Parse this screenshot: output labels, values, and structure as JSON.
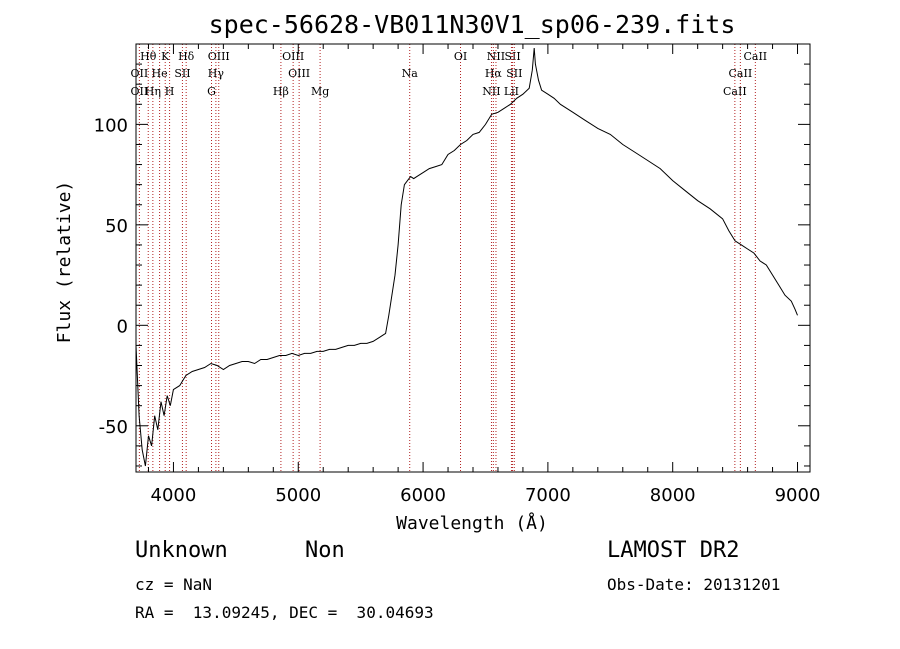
{
  "chart_data": {
    "type": "line",
    "title": "spec-56628-VB011N30V1_sp06-239.fits",
    "xlabel": "Wavelength (Å)",
    "ylabel": "Flux (relative)",
    "xlim": [
      3700,
      9100
    ],
    "ylim": [
      -73,
      140
    ],
    "xticks": [
      4000,
      5000,
      6000,
      7000,
      8000,
      9000
    ],
    "yticks": [
      -50,
      0,
      50,
      100
    ],
    "grid": false,
    "line_color": "#000000",
    "marker_color": "#b22222",
    "series": [
      {
        "x": [
          3700,
          3725,
          3750,
          3775,
          3800,
          3825,
          3850,
          3875,
          3900,
          3925,
          3950,
          3975,
          4000,
          4050,
          4100,
          4150,
          4200,
          4250,
          4300,
          4350,
          4400,
          4450,
          4500,
          4550,
          4600,
          4650,
          4700,
          4750,
          4800,
          4850,
          4900,
          4950,
          5000,
          5050,
          5100,
          5150,
          5200,
          5250,
          5300,
          5350,
          5400,
          5450,
          5500,
          5550,
          5600,
          5650,
          5700,
          5725,
          5750,
          5775,
          5800,
          5825,
          5850,
          5875,
          5900,
          5925,
          5950,
          6000,
          6050,
          6100,
          6150,
          6200,
          6250,
          6300,
          6350,
          6400,
          6450,
          6500,
          6550,
          6600,
          6650,
          6700,
          6750,
          6800,
          6850,
          6875,
          6890,
          6900,
          6925,
          6950,
          7000,
          7050,
          7100,
          7200,
          7300,
          7400,
          7500,
          7600,
          7700,
          7800,
          7900,
          8000,
          8100,
          8200,
          8300,
          8400,
          8450,
          8500,
          8550,
          8600,
          8650,
          8700,
          8750,
          8800,
          8850,
          8900,
          8950,
          8980,
          9000
        ],
        "y": [
          -10,
          -45,
          -62,
          -70,
          -55,
          -60,
          -45,
          -52,
          -38,
          -45,
          -35,
          -40,
          -32,
          -30,
          -25,
          -23,
          -22,
          -21,
          -19,
          -20,
          -22,
          -20,
          -19,
          -18,
          -18,
          -19,
          -17,
          -17,
          -16,
          -15,
          -15,
          -14,
          -15,
          -14,
          -14,
          -13,
          -13,
          -12,
          -12,
          -11,
          -10,
          -10,
          -9,
          -9,
          -8,
          -6,
          -4,
          5,
          15,
          25,
          40,
          60,
          70,
          72,
          74,
          73,
          74,
          76,
          78,
          79,
          80,
          85,
          87,
          90,
          92,
          95,
          96,
          100,
          105,
          106,
          108,
          110,
          113,
          115,
          118,
          127,
          138,
          130,
          122,
          117,
          115,
          113,
          110,
          106,
          102,
          98,
          95,
          90,
          86,
          82,
          78,
          72,
          67,
          62,
          58,
          53,
          47,
          42,
          40,
          38,
          36,
          32,
          30,
          25,
          20,
          15,
          12,
          8,
          5
        ]
      }
    ],
    "lines": [
      {
        "name": "Hθ",
        "x": 3798,
        "row": 0
      },
      {
        "name": "K",
        "x": 3934,
        "row": 0
      },
      {
        "name": "Hδ",
        "x": 4102,
        "row": 0
      },
      {
        "name": "OIII",
        "x": 4363,
        "row": 0
      },
      {
        "name": "OIII",
        "x": 4959,
        "row": 0
      },
      {
        "name": "OI",
        "x": 6300,
        "row": 0
      },
      {
        "name": "NII",
        "x": 6584,
        "row": 0
      },
      {
        "name": "SII",
        "x": 6717,
        "row": 0
      },
      {
        "name": "CaII",
        "x": 8662,
        "row": 0
      },
      {
        "name": "OII",
        "x": 3727,
        "row": 1
      },
      {
        "name": "He",
        "x": 3889,
        "row": 1
      },
      {
        "name": "SII",
        "x": 4072,
        "row": 1
      },
      {
        "name": "Hγ",
        "x": 4340,
        "row": 1
      },
      {
        "name": "OIII",
        "x": 5007,
        "row": 1
      },
      {
        "name": "Na",
        "x": 5893,
        "row": 1
      },
      {
        "name": "Hα",
        "x": 6563,
        "row": 1
      },
      {
        "name": "SII",
        "x": 6731,
        "row": 1
      },
      {
        "name": "CaII",
        "x": 8542,
        "row": 1
      },
      {
        "name": "OII",
        "x": 3727,
        "row": 2
      },
      {
        "name": "Hη",
        "x": 3835,
        "row": 2
      },
      {
        "name": "H",
        "x": 3969,
        "row": 2
      },
      {
        "name": "G",
        "x": 4305,
        "row": 2
      },
      {
        "name": "Hβ",
        "x": 4861,
        "row": 2
      },
      {
        "name": "Mg",
        "x": 5175,
        "row": 2
      },
      {
        "name": "NII",
        "x": 6548,
        "row": 2
      },
      {
        "name": "LiI",
        "x": 6708,
        "row": 2
      },
      {
        "name": "CaII",
        "x": 8498,
        "row": 2
      }
    ]
  },
  "info": {
    "object_class": "Unknown",
    "subclass": "Non",
    "survey": "LAMOST DR2",
    "redshift": "cz = NaN",
    "obs_date": "Obs-Date: 20131201",
    "coords": "RA =  13.09245, DEC =  30.04693"
  }
}
